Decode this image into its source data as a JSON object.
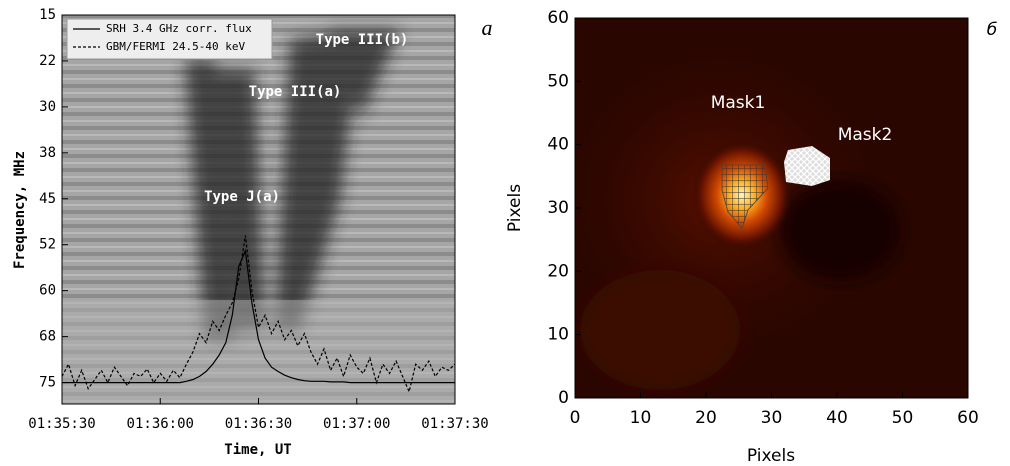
{
  "chart_data": [
    {
      "type": "line",
      "panel_label": "а",
      "xlabel": "Time, UT",
      "ylabel": "Frequency, MHz",
      "xlim": [
        5730,
        5850
      ],
      "xticks": [
        {
          "value": 5730,
          "label": "01:35:30"
        },
        {
          "value": 5760,
          "label": "01:36:00"
        },
        {
          "value": 5790,
          "label": "01:36:30"
        },
        {
          "value": 5820,
          "label": "01:37:00"
        },
        {
          "value": 5850,
          "label": "01:37:30"
        }
      ],
      "ylim": [
        15,
        78.5
      ],
      "y_inverted": true,
      "yticks": [
        15,
        {
          "value": 22.5,
          "label": "22"
        },
        30,
        {
          "value": 37.5,
          "label": "38"
        },
        45,
        {
          "value": 52.5,
          "label": "52"
        },
        60,
        {
          "value": 67.5,
          "label": "68"
        },
        75
      ],
      "annotations": [
        "Type III(b)",
        "Type III(a)",
        "Type J(a)"
      ],
      "x": [
        5730,
        5732,
        5734,
        5736,
        5738,
        5740,
        5742,
        5744,
        5746,
        5748,
        5750,
        5752,
        5754,
        5756,
        5758,
        5760,
        5762,
        5764,
        5766,
        5768,
        5770,
        5772,
        5774,
        5776,
        5778,
        5780,
        5782,
        5784,
        5786,
        5788,
        5790,
        5792,
        5794,
        5796,
        5798,
        5800,
        5802,
        5804,
        5806,
        5808,
        5810,
        5812,
        5814,
        5816,
        5818,
        5820,
        5822,
        5824,
        5826,
        5828,
        5830,
        5832,
        5834,
        5836,
        5838,
        5840,
        5842,
        5844,
        5846,
        5848,
        5850
      ],
      "series": [
        {
          "name": "SRH 3.4 GHz corr. flux",
          "color": "#000000",
          "dash": "solid",
          "values": [
            75,
            75,
            75,
            75,
            75,
            75,
            75,
            75,
            75,
            75,
            75,
            75,
            75,
            75,
            75,
            75,
            75,
            75,
            75,
            74.8,
            74.5,
            74,
            73.2,
            72,
            70.5,
            68.5,
            64,
            56,
            53.5,
            62,
            68,
            71,
            72.5,
            73.2,
            73.8,
            74.2,
            74.5,
            74.7,
            74.8,
            74.8,
            74.8,
            74.9,
            74.9,
            74.9,
            75,
            75,
            75,
            75,
            75,
            75,
            75,
            75,
            75,
            75,
            75,
            75,
            75,
            75,
            75,
            75,
            75
          ]
        },
        {
          "name": "GBM/FERMI 24.5-40 keV",
          "color": "#000000",
          "dash": "dashed",
          "values": [
            74,
            72,
            75.5,
            73,
            76,
            74.5,
            73,
            75,
            72.5,
            74,
            75.5,
            73.5,
            74,
            72.8,
            75,
            73.5,
            74.8,
            73,
            74.2,
            72,
            70,
            67,
            68.5,
            65,
            66.5,
            64,
            62,
            58,
            51,
            60,
            66,
            64,
            67,
            65,
            68,
            66.5,
            69,
            67,
            70,
            72,
            69.5,
            73,
            71,
            74,
            70.5,
            72.5,
            73.5,
            71,
            75,
            72,
            73.5,
            71.5,
            74,
            76.5,
            72,
            73,
            71.5,
            74,
            72.5,
            73,
            72
          ]
        }
      ]
    },
    {
      "type": "image",
      "panel_label": "б",
      "xlabel": "Pixels",
      "ylabel": "Pixels",
      "xlim": [
        0,
        60
      ],
      "xticks": [
        0,
        10,
        20,
        30,
        40,
        50,
        60
      ],
      "ylim": [
        0,
        60
      ],
      "yticks": [
        0,
        10,
        20,
        30,
        40,
        50,
        60
      ],
      "annotations": [
        "Mask1",
        "Mask2"
      ]
    }
  ]
}
